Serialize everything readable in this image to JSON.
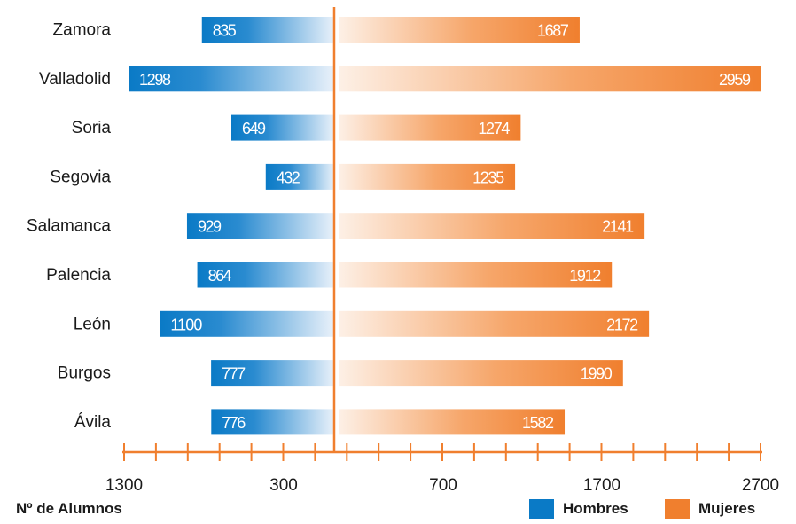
{
  "chart_data": {
    "type": "bar",
    "orientation": "horizontal-diverging",
    "categories": [
      "Zamora",
      "Valladolid",
      "Soria",
      "Segovia",
      "Salamanca",
      "Palencia",
      "León",
      "Burgos",
      "Ávila"
    ],
    "series": [
      {
        "name": "Hombres",
        "values": [
          835,
          1298,
          649,
          432,
          929,
          864,
          1100,
          777,
          776
        ],
        "color": "#0a7ac6"
      },
      {
        "name": "Mujeres",
        "values": [
          1687,
          2959,
          1274,
          1235,
          2141,
          1912,
          2172,
          1990,
          1582
        ],
        "color": "#f07f2e"
      }
    ],
    "xlabel": "Nº de Alumnos",
    "xticks": [
      "1300",
      "300",
      "700",
      "1700",
      "2700"
    ],
    "axis_color": "#f07f2e",
    "legend_position": "bottom-right",
    "grid": false
  }
}
